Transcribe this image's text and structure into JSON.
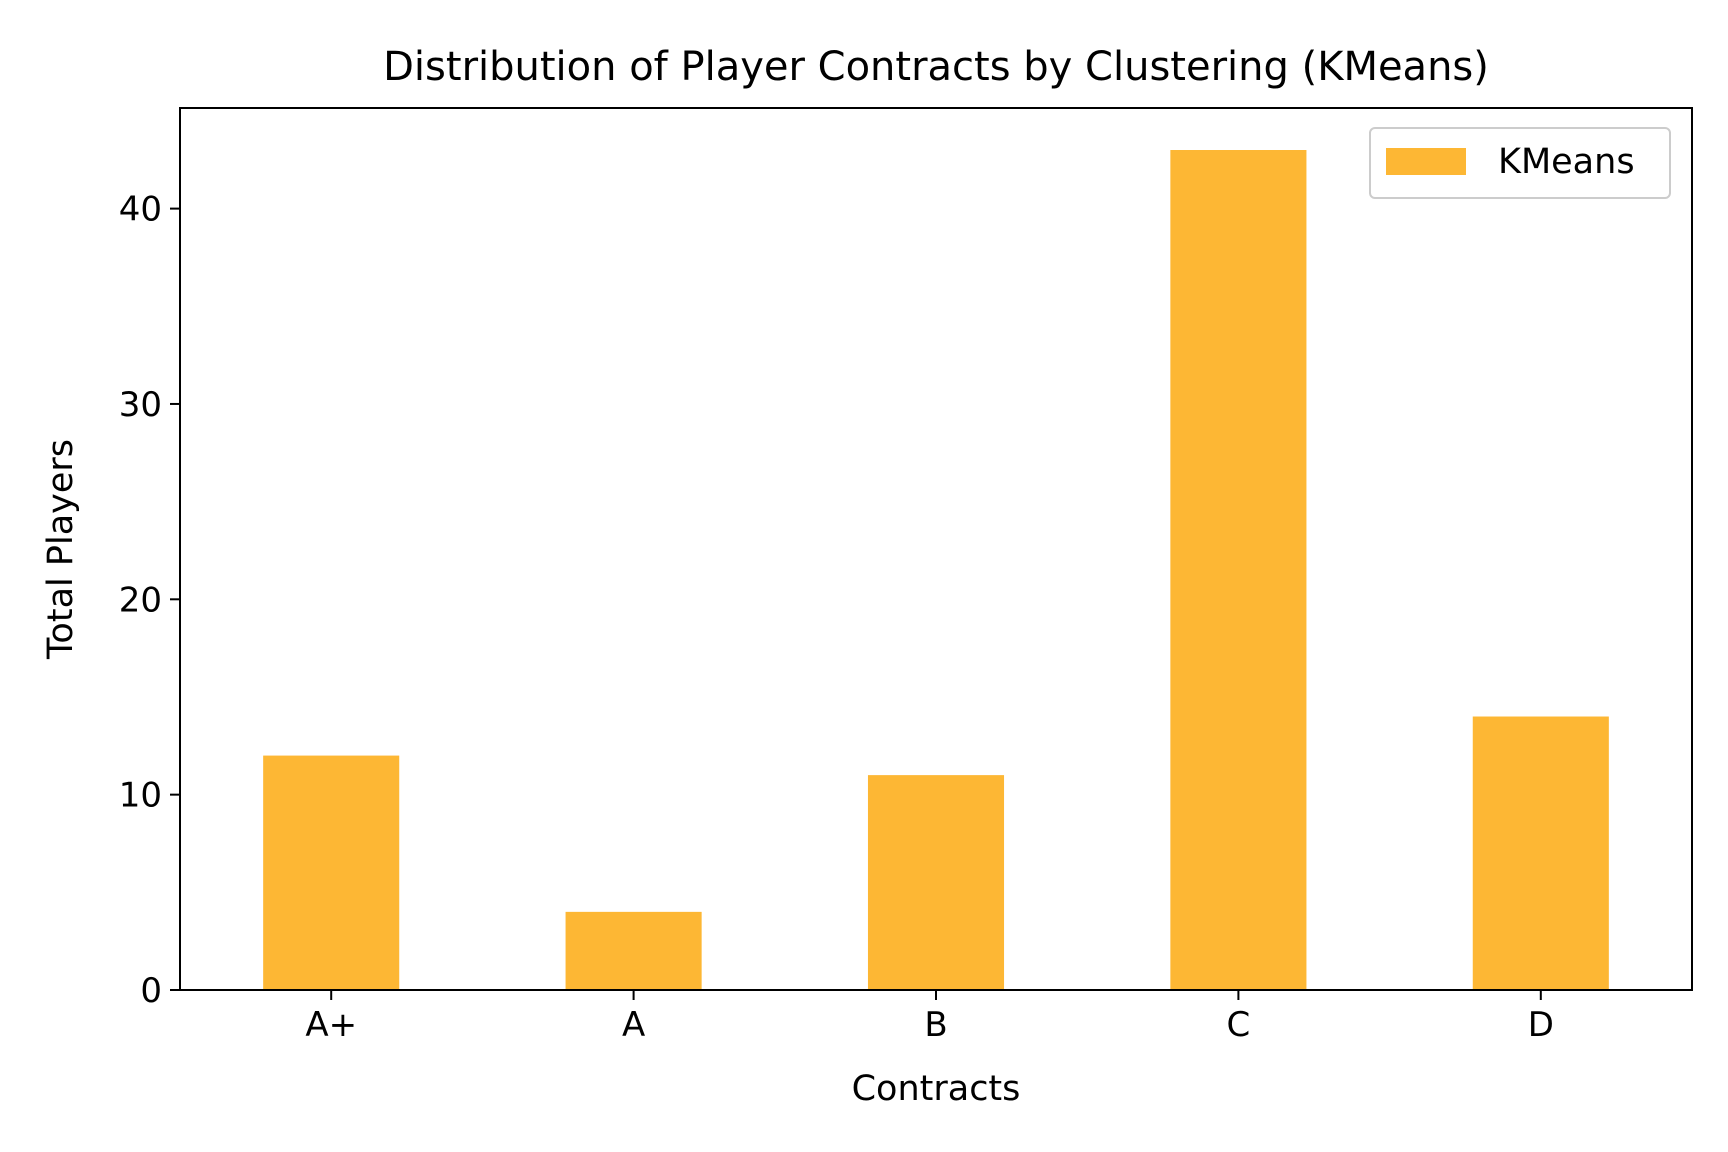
{
  "chart_data": {
    "type": "bar",
    "title": "Distribution of Player Contracts by Clustering (KMeans)",
    "xlabel": "Contracts",
    "ylabel": "Total Players",
    "categories": [
      "A+",
      "A",
      "B",
      "C",
      "D"
    ],
    "series": [
      {
        "name": "KMeans",
        "values": [
          12,
          4,
          11,
          43,
          14
        ],
        "color": "#FDB734"
      }
    ],
    "ylim": [
      0,
      45.15
    ],
    "yticks": [
      0,
      10,
      20,
      30,
      40
    ],
    "grid": false,
    "legend_position": "upper right"
  }
}
